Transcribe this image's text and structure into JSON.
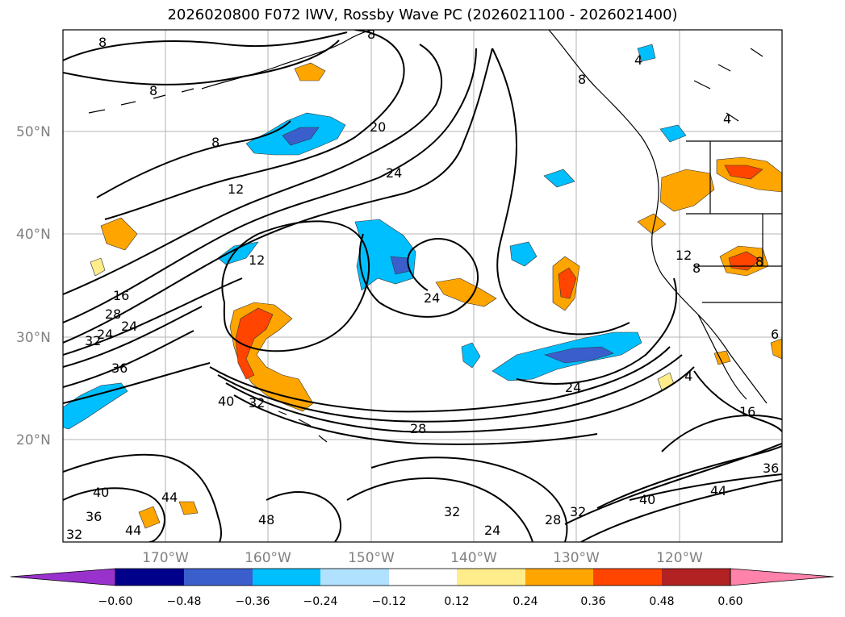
{
  "title": "2026020800 F072 IWV, Rossby Wave PC (2026021100 - 2026021400)",
  "lat_labels": [
    "50°N",
    "40°N",
    "30°N",
    "20°N"
  ],
  "lon_labels": [
    "170°W",
    "160°W",
    "150°W",
    "140°W",
    "130°W",
    "120°W"
  ],
  "colorbar": {
    "ticks": [
      "−0.60",
      "−0.48",
      "−0.36",
      "−0.24",
      "−0.12",
      "0.12",
      "0.24",
      "0.36",
      "0.48",
      "0.60"
    ],
    "colors": [
      "#9932cc",
      "#00008b",
      "#3a5fcd",
      "#00bfff",
      "#b0e2ff",
      "#ffffff",
      "#ffec8b",
      "#ffa500",
      "#ff4500",
      "#b22222",
      "#ff82ab"
    ]
  },
  "contour_labels": [
    "8",
    "8",
    "8",
    "8",
    "12",
    "12",
    "16",
    "20",
    "24",
    "24",
    "24",
    "24",
    "28",
    "32",
    "32",
    "36",
    "36",
    "40",
    "40",
    "40",
    "44",
    "44",
    "44",
    "48",
    "32",
    "24",
    "28",
    "32",
    "36",
    "16",
    "4",
    "8",
    "12",
    "8",
    "6",
    "4",
    "32",
    "28",
    "24",
    "4",
    "8"
  ]
}
